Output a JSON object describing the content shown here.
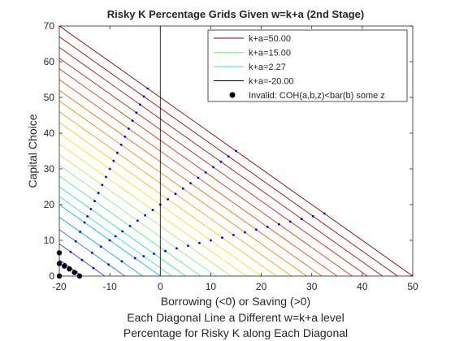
{
  "chart_data": {
    "type": "line",
    "title": "Risky K Percentage Grids Given w=k+a (2nd Stage)",
    "xlabel_lines": [
      "Borrowing (<0) or Saving (>0)",
      "Each Diagonal Line a Different w=k+a level",
      "Percentage for Risky K along Each Diagonal"
    ],
    "ylabel": "Capital Choice",
    "xlim": [
      -20,
      50
    ],
    "ylim": [
      0,
      70
    ],
    "xticks": [
      -20,
      -10,
      0,
      10,
      20,
      30,
      40,
      50
    ],
    "yticks": [
      0,
      10,
      20,
      30,
      40,
      50,
      60,
      70
    ],
    "x_tick_labels": [
      "-20",
      "-10",
      "0",
      "10",
      "20",
      "30",
      "40",
      "50"
    ],
    "y_tick_labels": [
      "0",
      "10",
      "20",
      "30",
      "40",
      "50",
      "60",
      "70"
    ],
    "grid": false,
    "vertical_reference_x": 0,
    "legend_position": "top-right",
    "legend": [
      {
        "label": "k+a=50.00",
        "color": "#8b0000",
        "style": "line"
      },
      {
        "label": "k+a=15.00",
        "color": "#90ee90",
        "style": "line"
      },
      {
        "label": "k+a=2.27",
        "color": "#40e0d0",
        "style": "line"
      },
      {
        "label": "k+a=-20.00",
        "color": "#000000",
        "style": "line"
      },
      {
        "label": "Invalid: COH(a,b,z)<bar(b) some z",
        "color": "#000000",
        "style": "marker"
      }
    ],
    "borrow_bound": -20,
    "w_levels": [
      -20,
      -15.5,
      -11,
      -7,
      -3.5,
      0,
      2.27,
      5,
      8,
      11,
      14,
      17,
      20,
      23,
      26,
      29,
      32,
      35,
      38,
      41,
      44,
      47,
      50
    ],
    "line_colors": [
      "#000000",
      "#2a1ce0",
      "#1e4cff",
      "#1a78ff",
      "#12a0ff",
      "#00c4ff",
      "#40e0d0",
      "#2ee6b0",
      "#5ceb8c",
      "#90ee90",
      "#b0f060",
      "#d8f030",
      "#f5e61e",
      "#f5c814",
      "#f5a50f",
      "#f58a0a",
      "#f56e0a",
      "#ec500a",
      "#dc3a0a",
      "#c8280a",
      "#b4140a",
      "#a00a0a",
      "#8b0000"
    ],
    "point_fractions": [
      0.25,
      0.5,
      0.75
    ],
    "invalid_points": [
      {
        "x": -20,
        "y": 6.5
      },
      {
        "x": -20,
        "y": 3.5
      },
      {
        "x": -20,
        "y": 0
      },
      {
        "x": -19,
        "y": 2.8
      },
      {
        "x": -18,
        "y": 2
      },
      {
        "x": -17,
        "y": 1
      },
      {
        "x": -16,
        "y": 0
      }
    ]
  }
}
